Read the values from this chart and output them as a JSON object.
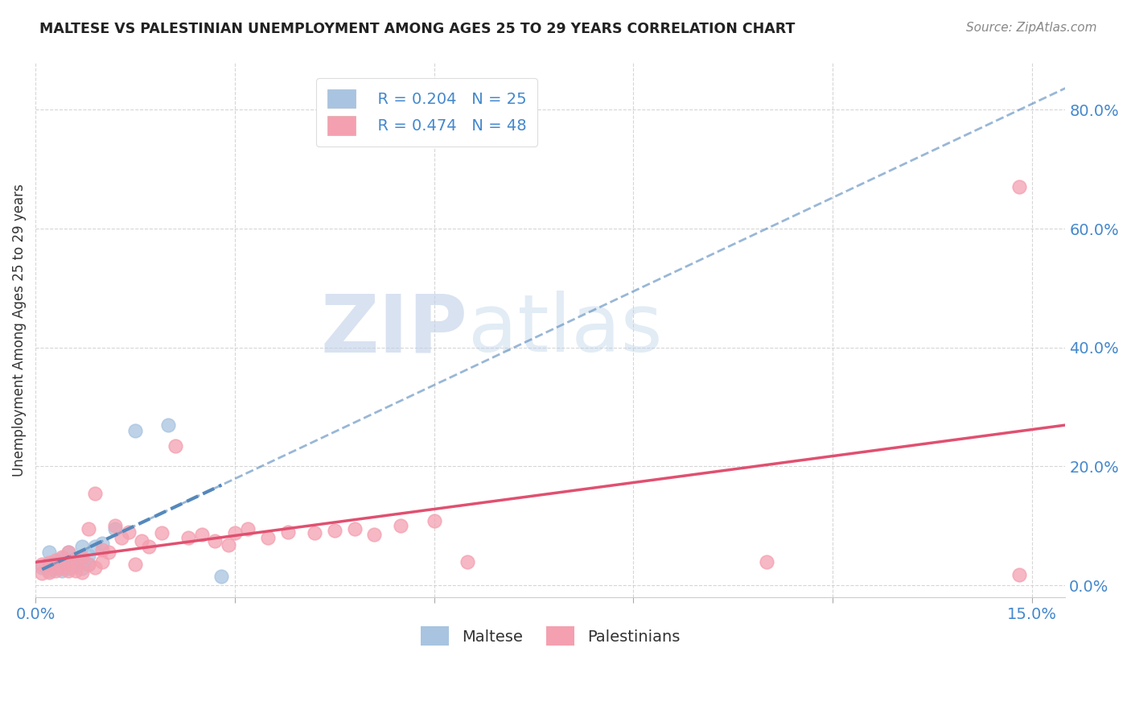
{
  "title": "MALTESE VS PALESTINIAN UNEMPLOYMENT AMONG AGES 25 TO 29 YEARS CORRELATION CHART",
  "source": "Source: ZipAtlas.com",
  "ylabel": "Unemployment Among Ages 25 to 29 years",
  "xlim": [
    0.0,
    0.155
  ],
  "ylim": [
    -0.02,
    0.88
  ],
  "xticks": [
    0.0,
    0.03,
    0.06,
    0.09,
    0.12,
    0.15
  ],
  "yticks": [
    0.0,
    0.2,
    0.4,
    0.6,
    0.8
  ],
  "ytick_labels": [
    "0.0%",
    "20.0%",
    "40.0%",
    "60.0%",
    "80.0%"
  ],
  "xtick_labels": [
    "0.0%",
    "",
    "",
    "",
    "",
    "15.0%"
  ],
  "maltese_R": "0.204",
  "maltese_N": "25",
  "palestinian_R": "0.474",
  "palestinian_N": "48",
  "maltese_color": "#a8c4e0",
  "maltese_line_color": "#5588bb",
  "palestinian_color": "#f4a0b0",
  "palestinian_line_color": "#e05070",
  "maltese_x": [
    0.001,
    0.002,
    0.002,
    0.003,
    0.003,
    0.003,
    0.004,
    0.004,
    0.004,
    0.005,
    0.005,
    0.005,
    0.006,
    0.006,
    0.007,
    0.007,
    0.007,
    0.008,
    0.008,
    0.009,
    0.01,
    0.012,
    0.015,
    0.02,
    0.028
  ],
  "maltese_y": [
    0.03,
    0.025,
    0.055,
    0.028,
    0.032,
    0.038,
    0.025,
    0.035,
    0.045,
    0.028,
    0.038,
    0.055,
    0.032,
    0.045,
    0.028,
    0.04,
    0.065,
    0.035,
    0.05,
    0.065,
    0.07,
    0.095,
    0.26,
    0.27,
    0.015
  ],
  "palestinian_x": [
    0.001,
    0.001,
    0.002,
    0.002,
    0.003,
    0.003,
    0.004,
    0.004,
    0.005,
    0.005,
    0.005,
    0.006,
    0.006,
    0.007,
    0.007,
    0.008,
    0.008,
    0.009,
    0.009,
    0.01,
    0.01,
    0.011,
    0.012,
    0.013,
    0.014,
    0.015,
    0.016,
    0.017,
    0.019,
    0.021,
    0.023,
    0.025,
    0.027,
    0.029,
    0.03,
    0.032,
    0.035,
    0.038,
    0.042,
    0.045,
    0.048,
    0.051,
    0.055,
    0.06,
    0.065,
    0.11,
    0.148,
    0.148
  ],
  "palestinian_y": [
    0.02,
    0.035,
    0.022,
    0.038,
    0.025,
    0.042,
    0.028,
    0.048,
    0.025,
    0.038,
    0.055,
    0.025,
    0.042,
    0.022,
    0.048,
    0.035,
    0.095,
    0.03,
    0.155,
    0.04,
    0.06,
    0.055,
    0.1,
    0.08,
    0.09,
    0.035,
    0.075,
    0.065,
    0.088,
    0.235,
    0.08,
    0.085,
    0.075,
    0.068,
    0.088,
    0.095,
    0.08,
    0.09,
    0.088,
    0.092,
    0.095,
    0.085,
    0.1,
    0.108,
    0.04,
    0.04,
    0.67,
    0.018
  ]
}
